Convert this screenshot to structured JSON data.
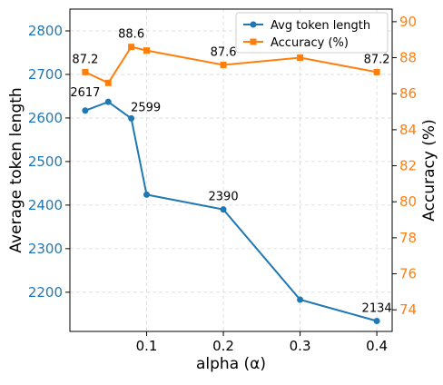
{
  "chart_data": {
    "type": "line",
    "xlabel": "alpha (α)",
    "ylabel_left": "Average token length",
    "ylabel_right": "Accuracy (%)",
    "x_ticks": [
      "0.1",
      "0.2",
      "0.3",
      "0.4"
    ],
    "x_tick_values": [
      0.1,
      0.2,
      0.3,
      0.4
    ],
    "xlim": [
      0.0,
      0.42
    ],
    "y_left_ticks": [
      "2200",
      "2300",
      "2400",
      "2500",
      "2600",
      "2700",
      "2800"
    ],
    "y_left_tick_values": [
      2200,
      2300,
      2400,
      2500,
      2600,
      2700,
      2800
    ],
    "ylim_left": [
      2110,
      2850
    ],
    "y_right_ticks": [
      "74",
      "76",
      "78",
      "80",
      "82",
      "84",
      "86",
      "88",
      "90"
    ],
    "y_right_tick_values": [
      74,
      76,
      78,
      80,
      82,
      84,
      86,
      88,
      90
    ],
    "ylim_right": [
      72.8,
      90.7
    ],
    "grid": true,
    "legend_position": "top-right",
    "series": [
      {
        "name": "Avg token length",
        "axis": "left",
        "color": "#1f77b4",
        "marker": "circle",
        "x": [
          0.02,
          0.05,
          0.08,
          0.1,
          0.2,
          0.3,
          0.4
        ],
        "y": [
          2617,
          2637,
          2599,
          2424,
          2390,
          2183,
          2134
        ],
        "data_labels": [
          {
            "index": 0,
            "text": "2617"
          },
          {
            "index": 2,
            "text": "2599"
          },
          {
            "index": 4,
            "text": "2390"
          },
          {
            "index": 6,
            "text": "2134"
          }
        ]
      },
      {
        "name": "Accuracy (%)",
        "axis": "right",
        "color": "#ff7f0e",
        "marker": "square",
        "x": [
          0.02,
          0.05,
          0.08,
          0.1,
          0.2,
          0.3,
          0.4
        ],
        "y": [
          87.2,
          86.6,
          88.6,
          88.4,
          87.6,
          88.0,
          87.2
        ],
        "data_labels": [
          {
            "index": 0,
            "text": "87.2"
          },
          {
            "index": 2,
            "text": "88.6"
          },
          {
            "index": 4,
            "text": "87.6"
          },
          {
            "index": 6,
            "text": "87.2"
          }
        ]
      }
    ]
  }
}
